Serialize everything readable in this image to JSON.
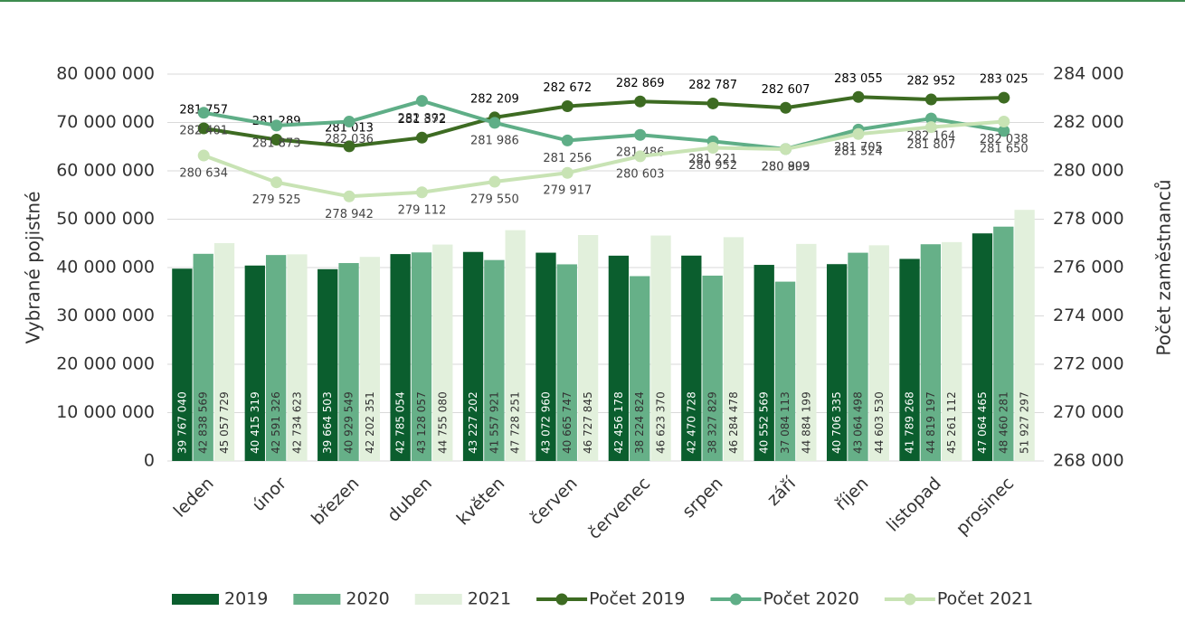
{
  "chart_data": {
    "type": "bar",
    "y_label": "Vybrané pojistné",
    "y2_label": "Počet zaměstnanců",
    "categories": [
      "leden",
      "únor",
      "březen",
      "duben",
      "květen",
      "červen",
      "červenec",
      "srpen",
      "září",
      "říjen",
      "listopad",
      "prosinec"
    ],
    "series": [
      {
        "name": "2019",
        "color": "#0b5e2e",
        "values": [
          39767040,
          40415319,
          39664503,
          42785054,
          43227202,
          43072960,
          42456178,
          42470728,
          40552569,
          40706335,
          41789268,
          47064465
        ],
        "value_labels": [
          "39 767 040",
          "40 415 319",
          "39 664 503",
          "42 785 054",
          "43 227 202",
          "43 072 960",
          "42 456 178",
          "42 470 728",
          "40 552 569",
          "40 706 335",
          "41 789 268",
          "47 064 465"
        ]
      },
      {
        "name": "2020",
        "color": "#66b088",
        "values": [
          42838569,
          42591326,
          40929549,
          43128057,
          41557921,
          40665747,
          38224824,
          38327829,
          37084113,
          43064498,
          44819197,
          48460281
        ],
        "value_labels": [
          "42 838 569",
          "42 591 326",
          "40 929 549",
          "43 128 057",
          "41 557 921",
          "40 665 747",
          "38 224 824",
          "38 327 829",
          "37 084 113",
          "43 064 498",
          "44 819 197",
          "48 460 281"
        ]
      },
      {
        "name": "2021",
        "color": "#e2f0dc",
        "values": [
          45057729,
          42734623,
          42202351,
          44755080,
          47728251,
          46727845,
          46623370,
          46284478,
          44884199,
          44603530,
          45261112,
          51927297
        ],
        "value_labels": [
          "45 057 729",
          "42 734 623",
          "42 202 351",
          "44 755 080",
          "47 728 251",
          "46 727 845",
          "46 623 370",
          "46 284 478",
          "44 884 199",
          "44 603 530",
          "45 261 112",
          "51 927 297"
        ]
      },
      {
        "name": "Počet 2019",
        "type": "line",
        "axis": "y2",
        "color": "#3d6b22",
        "values": [
          281757,
          281289,
          281013,
          281372,
          282209,
          282672,
          282869,
          282787,
          282607,
          283055,
          282952,
          283025
        ],
        "value_labels": [
          "281 757",
          "281 289",
          "281 013",
          "281 372",
          "282 209",
          "282 672",
          "282 869",
          "282 787",
          "282 607",
          "283 055",
          "282 952",
          "283 025"
        ]
      },
      {
        "name": "Počet 2020",
        "type": "line",
        "axis": "y2",
        "color": "#5fae87",
        "values": [
          282401,
          281873,
          282036,
          282892,
          281986,
          281256,
          281486,
          281221,
          280903,
          281705,
          282164,
          281650
        ],
        "value_labels": [
          "282 401",
          "281 873",
          "282 036",
          "282 892",
          "281 986",
          "281 256",
          "281 486",
          "281 221",
          "280 903",
          "281 705",
          "282 164",
          "281 650"
        ]
      },
      {
        "name": "Počet 2021",
        "type": "line",
        "axis": "y2",
        "color": "#c8e3b4",
        "values": [
          280634,
          279525,
          278942,
          279112,
          279550,
          279917,
          280603,
          280952,
          280899,
          281524,
          281807,
          282038
        ],
        "value_labels": [
          "280 634",
          "279 525",
          "278 942",
          "279 112",
          "279 550",
          "279 917",
          "280 603",
          "280 952",
          "280 899",
          "281 524",
          "281 807",
          "282 038"
        ]
      }
    ],
    "ylim": [
      0,
      80000000
    ],
    "yticks": [
      0,
      {
        "value": 10000000,
        "label": "10 000 000"
      },
      {
        "value": 20000000,
        "label": "20 000 000"
      },
      {
        "value": 30000000,
        "label": "30 000 000"
      },
      {
        "value": 40000000,
        "label": "40 000 000"
      },
      {
        "value": 50000000,
        "label": "50 000 000"
      },
      {
        "value": 60000000,
        "label": "60 000 000"
      },
      {
        "value": 70000000,
        "label": "70 000 000"
      },
      {
        "value": 80000000,
        "label": "80 000 000"
      }
    ],
    "y2lim": [
      268000,
      284000
    ],
    "y2ticks": [
      {
        "value": 268000,
        "label": "268 000"
      },
      {
        "value": 270000,
        "label": "270 000"
      },
      {
        "value": 272000,
        "label": "272 000"
      },
      {
        "value": 274000,
        "label": "274 000"
      },
      {
        "value": 276000,
        "label": "276 000"
      },
      {
        "value": 278000,
        "label": "278 000"
      },
      {
        "value": 280000,
        "label": "280 000"
      },
      {
        "value": 282000,
        "label": "282 000"
      },
      {
        "value": 284000,
        "label": "284 000"
      }
    ],
    "grid": true,
    "legend": "bottom"
  }
}
